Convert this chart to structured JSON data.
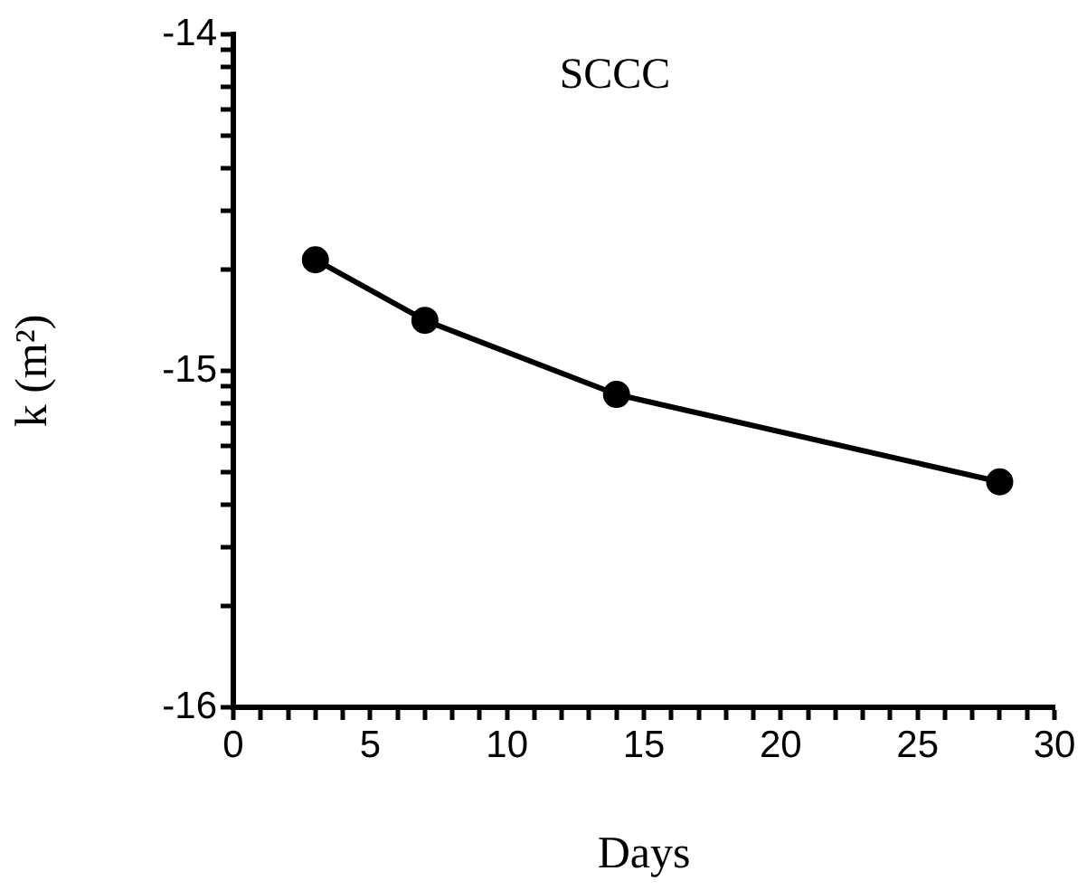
{
  "chart_data": {
    "type": "line",
    "title": "SCCC",
    "xlabel": "Days",
    "ylabel": "k (m²)",
    "x": [
      3,
      7,
      14,
      28
    ],
    "series": [
      {
        "color": "#000000",
        "values": [
          -14.67,
          -14.85,
          -15.07,
          -15.33
        ]
      }
    ],
    "marker": "circle",
    "line_style": "solid",
    "grid": false,
    "legend": false,
    "xlim": [
      0,
      30
    ],
    "xticks": [
      0,
      {
        "value": 1,
        "label": null
      },
      {
        "value": 2,
        "label": null
      },
      {
        "value": 3,
        "label": null
      },
      {
        "value": 4,
        "label": null
      },
      5,
      {
        "value": 6,
        "label": null
      },
      {
        "value": 7,
        "label": null
      },
      {
        "value": 8,
        "label": null
      },
      {
        "value": 9,
        "label": null
      },
      10,
      {
        "value": 11,
        "label": null
      },
      {
        "value": 12,
        "label": null
      },
      {
        "value": 13,
        "label": null
      },
      {
        "value": 14,
        "label": null
      },
      15,
      {
        "value": 16,
        "label": null
      },
      {
        "value": 17,
        "label": null
      },
      {
        "value": 18,
        "label": null
      },
      {
        "value": 19,
        "label": null
      },
      20,
      {
        "value": 21,
        "label": null
      },
      {
        "value": 22,
        "label": null
      },
      {
        "value": 23,
        "label": null
      },
      {
        "value": 24,
        "label": null
      },
      25,
      {
        "value": 26,
        "label": null
      },
      {
        "value": 27,
        "label": null
      },
      {
        "value": 28,
        "label": null
      },
      {
        "value": 29,
        "label": null
      },
      30
    ],
    "ylim": [
      -16,
      -14
    ],
    "yticks": [
      -16,
      {
        "value": -15.699,
        "label": null
      },
      {
        "value": -15.523,
        "label": null
      },
      {
        "value": -15.398,
        "label": null
      },
      {
        "value": -15.301,
        "label": null
      },
      {
        "value": -15.222,
        "label": null
      },
      {
        "value": -15.155,
        "label": null
      },
      {
        "value": -15.097,
        "label": null
      },
      {
        "value": -15.046,
        "label": null
      },
      -15,
      {
        "value": -14.699,
        "label": null
      },
      {
        "value": -14.523,
        "label": null
      },
      {
        "value": -14.398,
        "label": null
      },
      {
        "value": -14.301,
        "label": null
      },
      {
        "value": -14.222,
        "label": null
      },
      {
        "value": -14.155,
        "label": null
      },
      {
        "value": -14.097,
        "label": null
      },
      {
        "value": -14.046,
        "label": null
      },
      -14
    ]
  }
}
